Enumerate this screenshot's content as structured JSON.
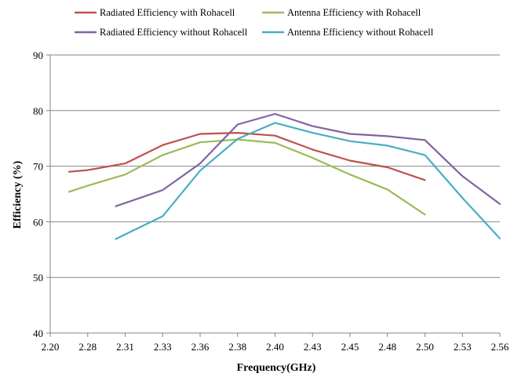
{
  "chart_data": {
    "type": "line",
    "title": "",
    "xlabel": "Frequency(GHz)",
    "ylabel": "Efficiency (%)",
    "x_tick_labels": [
      "2.20",
      "2.28",
      "2.31",
      "2.33",
      "2.36",
      "2.38",
      "2.40",
      "2.43",
      "2.45",
      "2.48",
      "2.50",
      "2.53",
      "2.56"
    ],
    "ylim": [
      40,
      90
    ],
    "y_ticks": [
      40,
      50,
      60,
      70,
      80,
      90
    ],
    "grid": "horizontal",
    "legend_position": "top",
    "series": [
      {
        "name": "Radiated Efficiency with Rohacell",
        "color": "#c0504d",
        "points": [
          [
            0.5,
            69
          ],
          [
            1,
            69.3
          ],
          [
            2,
            70.5
          ],
          [
            3,
            73.8
          ],
          [
            4,
            75.8
          ],
          [
            5,
            76
          ],
          [
            6,
            75.5
          ],
          [
            7,
            73
          ],
          [
            8,
            71
          ],
          [
            9,
            69.8
          ],
          [
            10,
            67.5
          ]
        ]
      },
      {
        "name": "Antenna Efficiency with Rohacell",
        "color": "#9bbb59",
        "points": [
          [
            0.5,
            65.4
          ],
          [
            1,
            66.5
          ],
          [
            2,
            68.5
          ],
          [
            3,
            72
          ],
          [
            4,
            74.3
          ],
          [
            5,
            74.8
          ],
          [
            6,
            74.2
          ],
          [
            7,
            71.5
          ],
          [
            8,
            68.5
          ],
          [
            9,
            65.8
          ],
          [
            10,
            61.3
          ]
        ]
      },
      {
        "name": "Radiated Efficiency without Rohacell",
        "color": "#8064a2",
        "points": [
          [
            1.75,
            62.8
          ],
          [
            3,
            65.7
          ],
          [
            4,
            70.5
          ],
          [
            5,
            77.5
          ],
          [
            6,
            79.4
          ],
          [
            7,
            77.2
          ],
          [
            8,
            75.8
          ],
          [
            9,
            75.4
          ],
          [
            10,
            74.7
          ],
          [
            11,
            68.2
          ],
          [
            12,
            63.2
          ]
        ]
      },
      {
        "name": "Antenna Efficiency without Rohacell",
        "color": "#4bacc6",
        "points": [
          [
            1.75,
            56.9
          ],
          [
            3,
            61
          ],
          [
            4,
            69.2
          ],
          [
            5,
            74.9
          ],
          [
            6,
            77.8
          ],
          [
            7,
            76
          ],
          [
            8,
            74.5
          ],
          [
            9,
            73.7
          ],
          [
            10,
            72
          ],
          [
            11,
            64.3
          ],
          [
            12,
            57
          ]
        ]
      }
    ]
  }
}
